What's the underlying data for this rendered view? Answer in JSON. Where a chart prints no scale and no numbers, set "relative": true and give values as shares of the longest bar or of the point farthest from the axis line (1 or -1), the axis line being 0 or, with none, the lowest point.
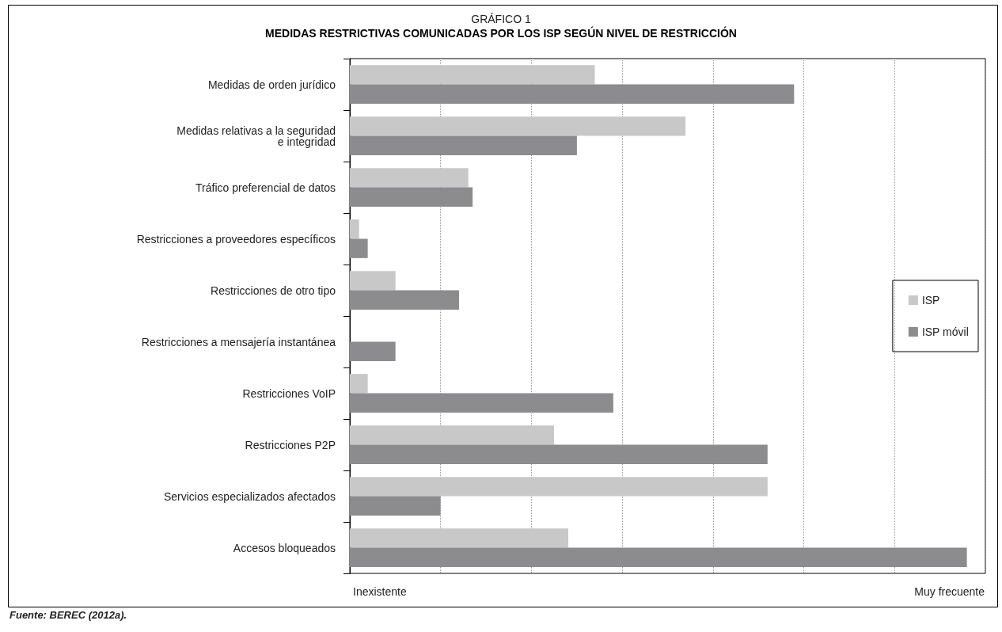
{
  "chart_data": {
    "type": "bar",
    "orientation": "horizontal",
    "relative": true,
    "title": "GRÁFICO 1",
    "subtitle": "MEDIDAS RESTRICTIVAS COMUNICADAS POR LOS ISP SEGÚN NIVEL DE RESTRICCIÓN",
    "categories": [
      "Medidas de orden jurídico",
      "Medidas relativas a la seguridad\ne integridad",
      "Tráfico preferencial de datos",
      "Restricciones a proveedores específicos",
      "Restricciones de otro tipo",
      "Restricciones a mensajería instantánea",
      "Restricciones VoIP",
      "Restricciones P2P",
      "Servicios especializados afectados",
      "Accesos bloqueados"
    ],
    "series": [
      {
        "name": "ISP",
        "color": "#c8c8c8",
        "values": [
          0.397,
          0.544,
          0.192,
          0.015,
          0.074,
          null,
          0.029,
          0.331,
          0.677,
          0.354
        ]
      },
      {
        "name": "ISP móvil",
        "color": "#8c8c8e",
        "values": [
          0.72,
          0.368,
          0.199,
          0.029,
          0.177,
          0.074,
          0.427,
          0.677,
          0.147,
          1.0
        ]
      }
    ],
    "grid": "x",
    "legend": "right",
    "annotations": [
      "Inexistente",
      "Muy frecuente",
      "Fuente: BEREC (2012a)."
    ]
  }
}
